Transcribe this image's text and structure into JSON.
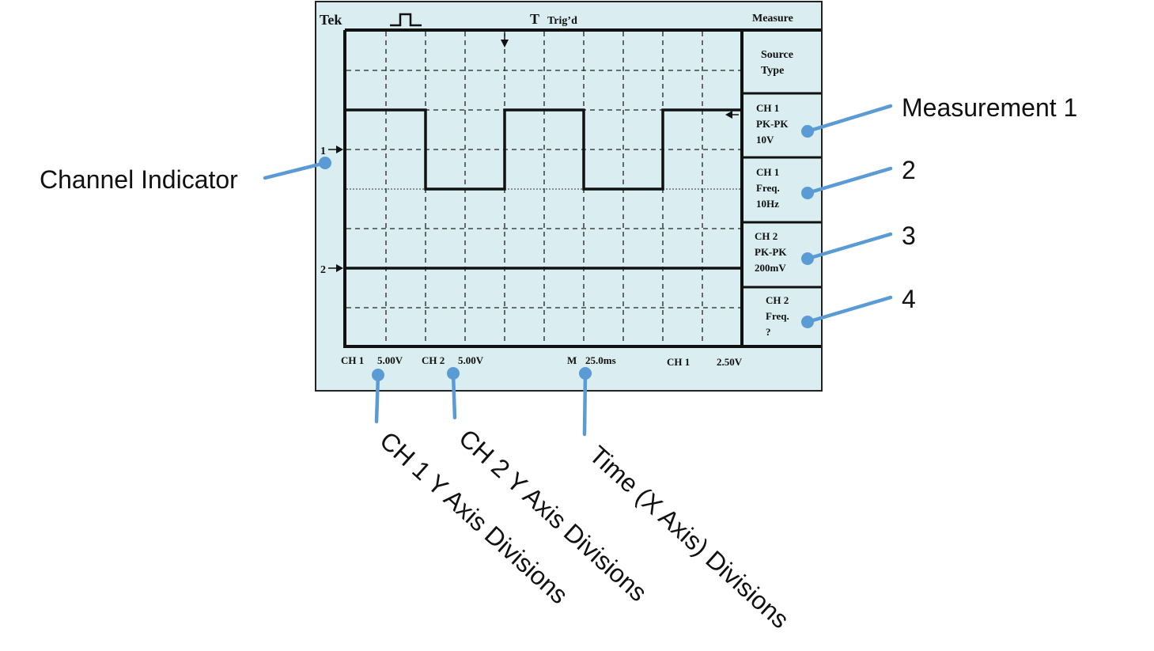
{
  "scope": {
    "brand": "Tek",
    "trigger_symbol": "T",
    "trigger_status": "Trig’d",
    "menu_title": "Measure",
    "source_type": [
      "Source",
      "Type"
    ],
    "channel_markers": {
      "ch1": "1",
      "ch2": "2"
    },
    "measurements": [
      {
        "lines": [
          "CH 1",
          "PK-PK",
          "10V"
        ]
      },
      {
        "lines": [
          "CH 1",
          "Freq.",
          "10Hz"
        ]
      },
      {
        "lines": [
          "CH 2",
          "PK-PK",
          "200mV"
        ]
      },
      {
        "lines": [
          "CH 2",
          "Freq.",
          "?"
        ]
      }
    ],
    "status_bar": {
      "ch1_label": "CH 1",
      "ch1_scale": "5.00V",
      "ch2_label": "CH 2",
      "ch2_scale": "5.00V",
      "time_label": "M",
      "time_scale": "25.0ms",
      "trigger_source": "CH 1",
      "trigger_level": "2.50V"
    }
  },
  "callouts": {
    "channel_indicator": "Channel Indicator",
    "measurement_1": "Measurement 1",
    "measurement_2": "2",
    "measurement_3": "3",
    "measurement_4": "4",
    "ch1_y_axis": "CH 1 Y Axis Divisions",
    "ch2_y_axis": "CH 2 Y Axis Divisions",
    "time_axis": "Time (X Axis) Divisions"
  },
  "colors": {
    "screen_bg": "#daedf0",
    "callout_line": "#5b9bd5",
    "trace": "#111111"
  }
}
